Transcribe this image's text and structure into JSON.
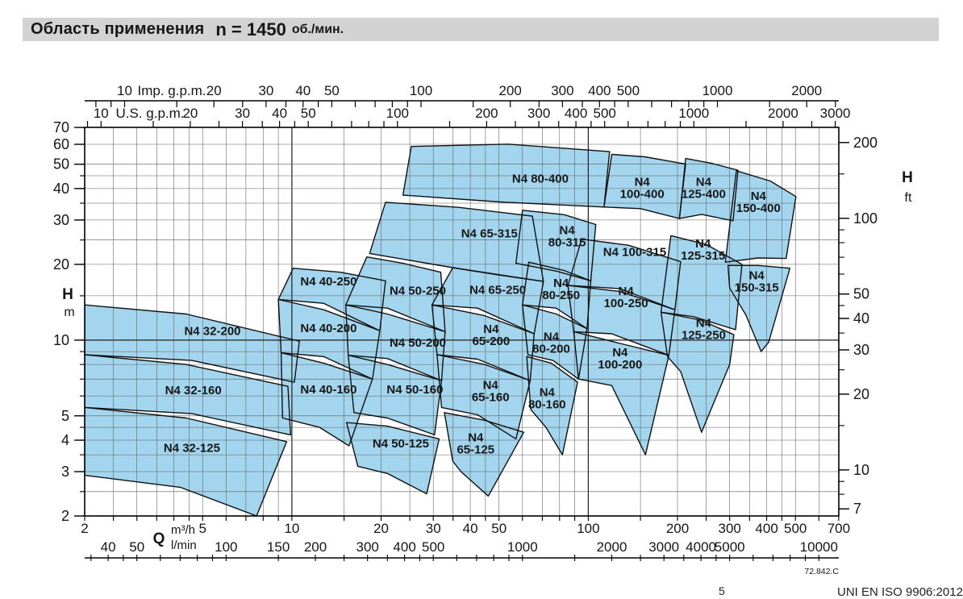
{
  "header": {
    "title": "Область применения",
    "speed": "n = 1450",
    "unit": "об./мин."
  },
  "footer": {
    "page_marker": "5",
    "standard": "UNI EN ISO 9906:2012"
  },
  "chart_data": {
    "type": "area",
    "title": "Область применения n = 1450 об./мин.",
    "x_axis_m3h": {
      "label": "Q",
      "unit": "m³/h",
      "range": [
        2,
        700
      ],
      "ticks": [
        2,
        5,
        10,
        20,
        30,
        40,
        50,
        100,
        200,
        300,
        400,
        500,
        700
      ]
    },
    "x_axis_lmin": {
      "unit": "l/min",
      "factor_per_m3h": 16.667,
      "ticks": [
        40,
        50,
        100,
        150,
        200,
        300,
        400,
        500,
        1000,
        2000,
        3000,
        4000,
        5000,
        10000
      ]
    },
    "top_axis_imp": {
      "label": "Imp. g.p.m.",
      "factor_per_m3h": 3.6662,
      "ticks": [
        10,
        20,
        30,
        40,
        50,
        100,
        200,
        300,
        400,
        500,
        1000,
        2000
      ]
    },
    "top_axis_us": {
      "label": "U.S. g.p.m.",
      "factor_per_m3h": 4.4029,
      "ticks": [
        10,
        20,
        30,
        40,
        50,
        100,
        200,
        300,
        400,
        500,
        1000,
        2000,
        3000
      ]
    },
    "y_axis_m": {
      "label": "H",
      "unit": "m",
      "range": [
        2,
        70
      ],
      "ticks": [
        2,
        3,
        4,
        5,
        10,
        20,
        30,
        40,
        50,
        60,
        70
      ]
    },
    "y_axis_ft": {
      "label": "H",
      "unit": "ft",
      "factor_per_m": 3.2808,
      "ticks": [
        7,
        10,
        20,
        30,
        40,
        50,
        100,
        200
      ]
    },
    "footnote": "72.842.C",
    "grid": true,
    "colors": {
      "region_fill": "#a3d6ee",
      "region_stroke": "#101010",
      "grid_minor": "#5a5a5a",
      "grid_major": "#1e1e1e",
      "header_bg": "#d3d3d3"
    },
    "pumps": [
      {
        "name": "N4 32-125",
        "two_line": false,
        "label": [
          4.6,
          3.75
        ],
        "poly": [
          [
            2,
            2.9
          ],
          [
            2,
            5.4
          ],
          [
            4.4,
            4.9
          ],
          [
            9.6,
            3.95
          ],
          [
            7.6,
            2.0
          ],
          [
            4.2,
            2.6
          ]
        ]
      },
      {
        "name": "N4 32-160",
        "two_line": false,
        "label": [
          4.65,
          6.35
        ],
        "poly": [
          [
            2,
            5.4
          ],
          [
            2,
            8.75
          ],
          [
            4.4,
            8.0
          ],
          [
            9.7,
            6.55
          ],
          [
            9.9,
            4.2
          ],
          [
            4.6,
            5.1
          ]
        ]
      },
      {
        "name": "N4 32-200",
        "two_line": false,
        "label": [
          5.4,
          10.9
        ],
        "poly": [
          [
            2,
            8.75
          ],
          [
            2,
            13.8
          ],
          [
            4.4,
            12.7
          ],
          [
            10.6,
            9.9
          ],
          [
            10.2,
            6.8
          ],
          [
            4.6,
            8.3
          ]
        ]
      },
      {
        "name": "N4 40-160",
        "two_line": false,
        "label": [
          13.3,
          6.4
        ],
        "poly": [
          [
            9.3,
            4.9
          ],
          [
            9.2,
            8.9
          ],
          [
            12.8,
            8.1
          ],
          [
            18.7,
            7.0
          ],
          [
            15.6,
            3.8
          ],
          [
            12.4,
            4.5
          ]
        ]
      },
      {
        "name": "N4 40-200",
        "two_line": false,
        "label": [
          13.3,
          11.2
        ],
        "poly": [
          [
            9.2,
            8.9
          ],
          [
            9.0,
            14.5
          ],
          [
            12.8,
            13.2
          ],
          [
            19.8,
            10.9
          ],
          [
            18.7,
            7.0
          ],
          [
            12.8,
            8.6
          ]
        ]
      },
      {
        "name": "N4 40-250",
        "two_line": false,
        "label": [
          13.3,
          17.2
        ],
        "poly": [
          [
            9.0,
            14.5
          ],
          [
            10.1,
            19.3
          ],
          [
            14.6,
            18.6
          ],
          [
            20.7,
            17.2
          ],
          [
            19.8,
            10.9
          ],
          [
            12.8,
            14.0
          ]
        ]
      },
      {
        "name": "N4 50-125",
        "two_line": false,
        "label": [
          23.3,
          3.9
        ],
        "poly": [
          [
            16.7,
            3.15
          ],
          [
            15.3,
            4.7
          ],
          [
            21,
            4.55
          ],
          [
            31.4,
            4.05
          ],
          [
            28.5,
            2.45
          ],
          [
            21,
            2.95
          ]
        ]
      },
      {
        "name": "N4 50-160",
        "two_line": false,
        "label": [
          26,
          6.4
        ],
        "poly": [
          [
            16.2,
            5.15
          ],
          [
            15.5,
            8.7
          ],
          [
            21,
            8.0
          ],
          [
            32,
            6.9
          ],
          [
            30.3,
            4.2
          ],
          [
            21,
            4.9
          ]
        ]
      },
      {
        "name": "N4 50-200",
        "two_line": false,
        "label": [
          26.6,
          9.8
        ],
        "poly": [
          [
            15.5,
            8.7
          ],
          [
            15.2,
            13.8
          ],
          [
            21,
            12.7
          ],
          [
            32.9,
            10.8
          ],
          [
            32,
            6.9
          ],
          [
            21,
            8.45
          ]
        ]
      },
      {
        "name": "N4 50-250",
        "two_line": false,
        "label": [
          26.6,
          15.8
        ],
        "poly": [
          [
            15.2,
            13.8
          ],
          [
            17.9,
            21.4
          ],
          [
            23.7,
            20.2
          ],
          [
            31.8,
            18.6
          ],
          [
            32.9,
            10.8
          ],
          [
            21,
            13.4
          ]
        ]
      },
      {
        "name": "N4 65-125",
        "two_line": true,
        "label": [
          41.7,
          3.9
        ],
        "poly": [
          [
            34.9,
            3.3
          ],
          [
            32.7,
            5.15
          ],
          [
            44.7,
            4.8
          ],
          [
            60.6,
            4.3
          ],
          [
            46,
            2.4
          ],
          [
            37.2,
            3.0
          ]
        ]
      },
      {
        "name": "N4 65-160",
        "two_line": true,
        "label": [
          46.8,
          6.3
        ],
        "poly": [
          [
            32,
            5.4
          ],
          [
            30.9,
            8.75
          ],
          [
            44.7,
            8.0
          ],
          [
            63.7,
            6.9
          ],
          [
            57,
            4.05
          ],
          [
            42.3,
            5.05
          ]
        ]
      },
      {
        "name": "N4 65-200",
        "two_line": true,
        "label": [
          47,
          10.5
        ],
        "poly": [
          [
            30.9,
            8.75
          ],
          [
            29.7,
            13.8
          ],
          [
            44.7,
            12.5
          ],
          [
            65.7,
            10.6
          ],
          [
            63.7,
            6.9
          ],
          [
            42.3,
            8.4
          ]
        ]
      },
      {
        "name": "N4 65-250",
        "two_line": false,
        "label": [
          49.5,
          15.9
        ],
        "poly": [
          [
            29.7,
            13.8
          ],
          [
            34.9,
            19.4
          ],
          [
            49,
            18.2
          ],
          [
            70.6,
            17.1
          ],
          [
            65.7,
            10.6
          ],
          [
            42.3,
            13.4
          ]
        ]
      },
      {
        "name": "N4 65-315",
        "two_line": false,
        "label": [
          46.4,
          26.6
        ],
        "poly": [
          [
            18.3,
            22.1
          ],
          [
            20.7,
            35.3
          ],
          [
            36.5,
            33.7
          ],
          [
            64.8,
            31.1
          ],
          [
            70.6,
            17.1
          ],
          [
            34.9,
            19.4
          ]
        ]
      },
      {
        "name": "N4 80-160",
        "two_line": true,
        "label": [
          72.6,
          5.9
        ],
        "poly": [
          [
            64,
            5.3
          ],
          [
            62,
            8.6
          ],
          [
            75,
            8.1
          ],
          [
            92,
            6.8
          ],
          [
            81.8,
            3.5
          ],
          [
            72,
            4.5
          ]
        ]
      },
      {
        "name": "N4 80-200",
        "two_line": true,
        "label": [
          75,
          9.8
        ],
        "poly": [
          [
            62.6,
            8.75
          ],
          [
            60,
            13.8
          ],
          [
            78,
            12.7
          ],
          [
            99,
            11.1
          ],
          [
            92.7,
            7.0
          ],
          [
            76,
            8.3
          ]
        ]
      },
      {
        "name": "N4 80-250",
        "two_line": true,
        "label": [
          81,
          16
        ],
        "poly": [
          [
            60,
            13.8
          ],
          [
            63,
            20.4
          ],
          [
            83,
            18.9
          ],
          [
            102,
            17.2
          ],
          [
            99,
            11.1
          ],
          [
            78,
            13.4
          ]
        ]
      },
      {
        "name": "N4 80-315",
        "two_line": true,
        "label": [
          84.8,
          26
        ],
        "poly": [
          [
            57,
            20.2
          ],
          [
            60,
            32.8
          ],
          [
            83,
            31.5
          ],
          [
            106,
            28.8
          ],
          [
            102,
            17.2
          ],
          [
            78,
            18.8
          ]
        ]
      },
      {
        "name": "N4 80-400",
        "two_line": false,
        "label": [
          68.9,
          44
        ],
        "poly": [
          [
            23.7,
            37.7
          ],
          [
            25.3,
            58.8
          ],
          [
            53.7,
            60.1
          ],
          [
            118,
            56.1
          ],
          [
            113,
            33.8
          ],
          [
            50.3,
            35.4
          ]
        ]
      },
      {
        "name": "N4 100-200",
        "two_line": true,
        "label": [
          128,
          8.5
        ],
        "poly": [
          [
            92.7,
            7.0
          ],
          [
            89.3,
            10.8
          ],
          [
            128,
            9.7
          ],
          [
            187,
            8.7
          ],
          [
            156,
            3.5
          ],
          [
            120,
            6.6
          ]
        ]
      },
      {
        "name": "N4 100-250",
        "two_line": true,
        "label": [
          134,
          14.9
        ],
        "poly": [
          [
            89.3,
            10.8
          ],
          [
            85.4,
            16.5
          ],
          [
            128,
            15.6
          ],
          [
            196,
            13.2
          ],
          [
            187,
            8.7
          ],
          [
            120,
            10.6
          ]
        ]
      },
      {
        "name": "N4 100-315",
        "two_line": false,
        "label": [
          143.5,
          22.5
        ],
        "poly": [
          [
            85.4,
            16.5
          ],
          [
            95,
            25.2
          ],
          [
            137,
            23.8
          ],
          [
            205,
            20.5
          ],
          [
            196,
            13.2
          ],
          [
            128,
            16.0
          ]
        ]
      },
      {
        "name": "N4 100-400",
        "two_line": true,
        "label": [
          152,
          40.5
        ],
        "poly": [
          [
            113,
            33.8
          ],
          [
            120,
            54.7
          ],
          [
            155,
            53.5
          ],
          [
            213,
            50.1
          ],
          [
            203,
            30.4
          ],
          [
            150,
            33.3
          ]
        ]
      },
      {
        "name": "N4 125-250",
        "two_line": true,
        "label": [
          245,
          11.1
        ],
        "poly": [
          [
            185,
            8.6
          ],
          [
            176,
            12.9
          ],
          [
            240,
            12.0
          ],
          [
            310,
            10.5
          ],
          [
            300,
            8.0
          ],
          [
            241,
            4.3
          ],
          [
            205,
            7.5
          ]
        ]
      },
      {
        "name": "N4 125-315",
        "two_line": true,
        "label": [
          244,
          23
        ],
        "poly": [
          [
            176,
            12.9
          ],
          [
            190,
            26.0
          ],
          [
            250,
            24.0
          ],
          [
            330,
            20.0
          ],
          [
            314,
            11.0
          ],
          [
            226,
            12.4
          ]
        ]
      },
      {
        "name": "N4 125-400",
        "two_line": true,
        "label": [
          245,
          40.5
        ],
        "poly": [
          [
            203,
            30.4
          ],
          [
            213,
            52.7
          ],
          [
            260,
            50.5
          ],
          [
            320,
            47.3
          ],
          [
            308,
            29.8
          ],
          [
            241,
            31.6
          ]
        ]
      },
      {
        "name": "N4 150-315",
        "two_line": true,
        "label": [
          370,
          17.2
        ],
        "poly": [
          [
            300,
            16.1
          ],
          [
            296,
            19.8
          ],
          [
            374,
            19.8
          ],
          [
            479,
            19.3
          ],
          [
            406,
            9.8
          ],
          [
            383,
            9.0
          ],
          [
            340,
            12.6
          ]
        ]
      },
      {
        "name": "N4 150-400",
        "two_line": true,
        "label": [
          375,
          35.5
        ],
        "poly": [
          [
            290,
            20.4
          ],
          [
            316,
            47.1
          ],
          [
            411,
            42.9
          ],
          [
            502,
            37.2
          ],
          [
            465,
            21.1
          ],
          [
            374,
            21.2
          ]
        ]
      }
    ]
  }
}
